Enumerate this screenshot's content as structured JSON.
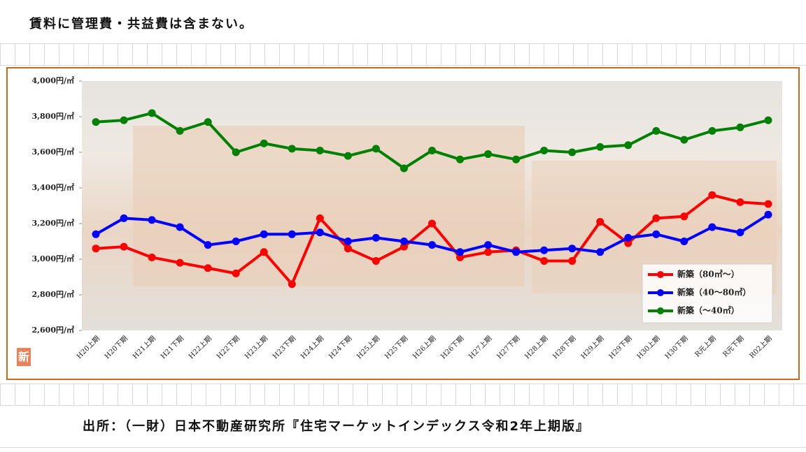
{
  "note": "賃料に管理費・共益費は含まない。",
  "source": "出所：（一財）日本不動産研究所『住宅マーケットインデックス令和2年上期版』",
  "badge": "新",
  "chart_data": {
    "type": "line",
    "categories": [
      "H20上期",
      "H20下期",
      "H21上期",
      "H21下期",
      "H22上期",
      "H22下期",
      "H23上期",
      "H23下期",
      "H24上期",
      "H24下期",
      "H25上期",
      "H25下期",
      "H26上期",
      "H26下期",
      "H27上期",
      "H27下期",
      "H28上期",
      "H28下期",
      "H29上期",
      "H29下期",
      "H30上期",
      "H30下期",
      "R元上期",
      "R元下期",
      "R02上期"
    ],
    "series": [
      {
        "name": "新築（80㎡～）",
        "color": "#ff0000",
        "values": [
          3060,
          3070,
          3010,
          2980,
          2950,
          2920,
          3040,
          2860,
          3230,
          3060,
          2990,
          3070,
          3200,
          3010,
          3040,
          3050,
          2990,
          2990,
          3210,
          3090,
          3230,
          3240,
          3360,
          3320,
          3310
        ]
      },
      {
        "name": "新築（40～80㎡）",
        "color": "#0000ff",
        "values": [
          3140,
          3230,
          3220,
          3180,
          3080,
          3100,
          3140,
          3140,
          3150,
          3100,
          3120,
          3100,
          3080,
          3040,
          3080,
          3040,
          3050,
          3060,
          3040,
          3120,
          3140,
          3100,
          3180,
          3150,
          3250
        ]
      },
      {
        "name": "新築（～40㎡）",
        "color": "#008000",
        "values": [
          3770,
          3780,
          3820,
          3720,
          3770,
          3600,
          3650,
          3620,
          3610,
          3580,
          3620,
          3510,
          3610,
          3560,
          3590,
          3560,
          3610,
          3600,
          3630,
          3640,
          3720,
          3670,
          3720,
          3740,
          3780
        ]
      }
    ],
    "ylim": [
      2600,
      4000
    ],
    "yticks": [
      {
        "value": 2600,
        "label": "2,600円/㎡"
      },
      {
        "value": 2800,
        "label": "2,800円/㎡"
      },
      {
        "value": 3000,
        "label": "3,000円/㎡"
      },
      {
        "value": 3200,
        "label": "3,200円/㎡"
      },
      {
        "value": 3400,
        "label": "3,400円/㎡"
      },
      {
        "value": 3600,
        "label": "3,600円/㎡"
      },
      {
        "value": 3800,
        "label": "3,800円/㎡"
      },
      {
        "value": 4000,
        "label": "4,000円/㎡"
      }
    ],
    "legend": "lower right"
  }
}
